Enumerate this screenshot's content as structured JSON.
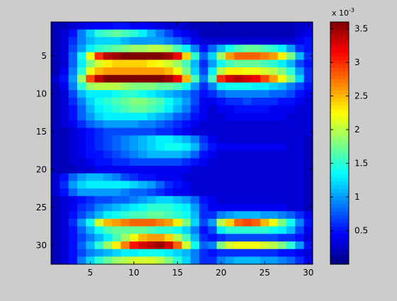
{
  "figure": {
    "background": "#cccccc"
  },
  "chart_data": {
    "type": "heatmap",
    "title": "",
    "xlabel": "",
    "ylabel": "",
    "x_ticks": [
      5,
      10,
      15,
      20,
      25,
      30
    ],
    "y_ticks": [
      5,
      10,
      15,
      20,
      25,
      30
    ],
    "xlim": [
      0.5,
      30.5
    ],
    "ylim": [
      0.5,
      32.5
    ],
    "y_direction": "reversed",
    "colormap": "jet",
    "clim": [
      0,
      0.0036
    ],
    "colorbar": {
      "exponent_label": "x 10",
      "exponent": "-3",
      "tick_values": [
        0.5,
        1,
        1.5,
        2,
        2.5,
        3,
        3.5
      ],
      "tick_labels": [
        "0.5",
        "1",
        "1.5",
        "2",
        "2.5",
        "3",
        "3.5"
      ]
    },
    "z_unit_scale": 0.001,
    "z_rows": [
      [
        0.2,
        0.2,
        0.3,
        0.35,
        0.4,
        0.45,
        0.45,
        0.5,
        0.5,
        0.45,
        0.45,
        0.4,
        0.35,
        0.3,
        0.3,
        0.25,
        0.2,
        0.2,
        0.2,
        0.2,
        0.2,
        0.2,
        0.2,
        0.2,
        0.2,
        0.2,
        0.2,
        0.2,
        0.25,
        0.3
      ],
      [
        0.2,
        0.3,
        0.5,
        0.9,
        1.2,
        1.5,
        1.6,
        1.7,
        1.6,
        1.5,
        1.3,
        1.1,
        0.9,
        0.7,
        0.5,
        0.4,
        0.3,
        0.2,
        0.2,
        0.2,
        0.2,
        0.2,
        0.2,
        0.2,
        0.2,
        0.2,
        0.2,
        0.2,
        0.3,
        0.4
      ],
      [
        0.2,
        0.3,
        0.6,
        0.9,
        1.1,
        1.2,
        1.2,
        1.2,
        1.1,
        1.0,
        1.0,
        1.0,
        1.0,
        0.9,
        0.8,
        0.6,
        0.4,
        0.3,
        0.3,
        0.3,
        0.3,
        0.3,
        0.3,
        0.3,
        0.3,
        0.3,
        0.3,
        0.3,
        0.4,
        0.5
      ],
      [
        0.2,
        0.3,
        0.7,
        1.0,
        1.3,
        1.5,
        1.6,
        1.7,
        1.8,
        1.9,
        1.9,
        2.0,
        2.0,
        1.9,
        1.6,
        1.3,
        0.9,
        0.5,
        0.8,
        1.1,
        1.4,
        1.6,
        1.7,
        1.7,
        1.6,
        1.5,
        1.3,
        1.0,
        0.6,
        0.5
      ],
      [
        0.2,
        0.3,
        0.8,
        1.4,
        2.2,
        3.0,
        3.4,
        3.5,
        3.6,
        3.6,
        3.6,
        3.6,
        3.6,
        3.5,
        3.2,
        2.4,
        1.5,
        0.8,
        1.2,
        1.9,
        2.6,
        2.8,
        2.8,
        2.8,
        2.7,
        2.6,
        2.3,
        1.8,
        1.1,
        0.6
      ],
      [
        0.2,
        0.3,
        0.8,
        1.3,
        1.8,
        2.1,
        2.3,
        2.4,
        2.4,
        2.4,
        2.4,
        2.3,
        2.2,
        2.1,
        1.9,
        1.6,
        1.1,
        0.6,
        1.0,
        1.4,
        1.6,
        1.7,
        1.7,
        1.7,
        1.6,
        1.5,
        1.3,
        1.1,
        0.7,
        0.5
      ],
      [
        0.2,
        0.4,
        0.9,
        1.5,
        2.2,
        2.5,
        2.6,
        2.6,
        2.6,
        2.6,
        2.6,
        2.6,
        2.6,
        2.5,
        2.2,
        1.8,
        1.2,
        0.7,
        1.3,
        2.0,
        2.3,
        2.3,
        2.2,
        2.2,
        2.1,
        2.0,
        1.8,
        1.5,
        1.0,
        0.6
      ],
      [
        0.3,
        0.5,
        1.0,
        1.9,
        2.9,
        3.4,
        3.6,
        3.6,
        3.6,
        3.6,
        3.6,
        3.6,
        3.6,
        3.5,
        3.2,
        2.5,
        1.6,
        0.9,
        1.6,
        3.0,
        3.3,
        3.4,
        3.3,
        3.2,
        2.9,
        2.6,
        2.2,
        1.8,
        1.2,
        0.6
      ],
      [
        0.2,
        0.4,
        0.9,
        1.5,
        1.9,
        2.0,
        2.0,
        2.0,
        1.9,
        1.8,
        1.8,
        1.8,
        1.7,
        1.7,
        1.6,
        1.4,
        1.0,
        0.6,
        0.9,
        1.3,
        1.4,
        1.4,
        1.4,
        1.3,
        1.3,
        1.2,
        1.1,
        0.9,
        0.7,
        0.5
      ],
      [
        0.2,
        0.3,
        0.7,
        1.1,
        1.3,
        1.3,
        1.3,
        1.4,
        1.5,
        1.5,
        1.4,
        1.3,
        1.2,
        1.1,
        1.0,
        0.9,
        0.7,
        0.5,
        0.6,
        0.8,
        0.9,
        0.9,
        0.9,
        0.9,
        0.9,
        0.8,
        0.8,
        0.7,
        0.5,
        0.4
      ],
      [
        0.2,
        0.3,
        0.6,
        0.9,
        1.2,
        1.4,
        1.5,
        1.6,
        1.7,
        1.8,
        1.8,
        1.7,
        1.6,
        1.4,
        1.2,
        1.0,
        0.7,
        0.4,
        0.4,
        0.5,
        0.6,
        0.6,
        0.7,
        0.6,
        0.6,
        0.6,
        0.5,
        0.5,
        0.4,
        0.3
      ],
      [
        0.2,
        0.3,
        0.5,
        0.8,
        1.1,
        1.3,
        1.4,
        1.5,
        1.6,
        1.7,
        1.7,
        1.6,
        1.5,
        1.3,
        1.1,
        0.9,
        0.6,
        0.4,
        0.3,
        0.4,
        0.4,
        0.5,
        0.5,
        0.5,
        0.5,
        0.4,
        0.4,
        0.4,
        0.3,
        0.3
      ],
      [
        0.2,
        0.3,
        0.5,
        0.8,
        1.0,
        1.2,
        1.3,
        1.3,
        1.3,
        1.3,
        1.3,
        1.2,
        1.1,
        1.0,
        0.8,
        0.7,
        0.5,
        0.4,
        0.3,
        0.3,
        0.4,
        0.4,
        0.4,
        0.4,
        0.4,
        0.4,
        0.4,
        0.3,
        0.3,
        0.3
      ],
      [
        0.2,
        0.3,
        0.4,
        0.6,
        0.8,
        0.9,
        1.0,
        1.0,
        1.0,
        1.0,
        0.9,
        0.9,
        0.8,
        0.7,
        0.6,
        0.5,
        0.4,
        0.3,
        0.3,
        0.3,
        0.3,
        0.3,
        0.3,
        0.3,
        0.3,
        0.3,
        0.3,
        0.3,
        0.3,
        0.3
      ],
      [
        0.2,
        0.2,
        0.3,
        0.4,
        0.5,
        0.6,
        0.7,
        0.7,
        0.7,
        0.7,
        0.7,
        0.7,
        0.6,
        0.6,
        0.5,
        0.4,
        0.3,
        0.3,
        0.3,
        0.3,
        0.3,
        0.3,
        0.3,
        0.3,
        0.3,
        0.3,
        0.3,
        0.3,
        0.3,
        0.3
      ],
      [
        0.2,
        0.2,
        0.3,
        0.4,
        0.5,
        0.6,
        0.7,
        0.8,
        0.9,
        1.0,
        1.1,
        1.2,
        1.3,
        1.3,
        1.2,
        1.1,
        0.9,
        0.6,
        0.4,
        0.3,
        0.3,
        0.3,
        0.3,
        0.3,
        0.3,
        0.3,
        0.3,
        0.3,
        0.3,
        0.2
      ],
      [
        0.2,
        0.2,
        0.3,
        0.4,
        0.5,
        0.6,
        0.7,
        0.8,
        0.9,
        1.0,
        1.1,
        1.2,
        1.3,
        1.4,
        1.4,
        1.3,
        1.1,
        0.7,
        0.5,
        0.4,
        0.4,
        0.4,
        0.4,
        0.4,
        0.4,
        0.4,
        0.4,
        0.3,
        0.3,
        0.2
      ],
      [
        0.2,
        0.2,
        0.3,
        0.4,
        0.5,
        0.5,
        0.6,
        0.7,
        0.8,
        0.9,
        1.0,
        1.1,
        1.1,
        1.1,
        1.1,
        1.0,
        0.8,
        0.5,
        0.4,
        0.3,
        0.3,
        0.3,
        0.3,
        0.3,
        0.3,
        0.3,
        0.3,
        0.3,
        0.3,
        0.2
      ],
      [
        0.2,
        0.2,
        0.3,
        0.3,
        0.4,
        0.5,
        0.5,
        0.6,
        0.6,
        0.7,
        0.7,
        0.7,
        0.7,
        0.7,
        0.7,
        0.6,
        0.5,
        0.4,
        0.3,
        0.3,
        0.3,
        0.3,
        0.3,
        0.3,
        0.3,
        0.3,
        0.3,
        0.3,
        0.3,
        0.2
      ],
      [
        0.2,
        0.2,
        0.2,
        0.3,
        0.3,
        0.4,
        0.4,
        0.4,
        0.4,
        0.4,
        0.4,
        0.4,
        0.4,
        0.4,
        0.4,
        0.4,
        0.3,
        0.3,
        0.3,
        0.3,
        0.3,
        0.3,
        0.3,
        0.3,
        0.3,
        0.3,
        0.3,
        0.3,
        0.3,
        0.2
      ],
      [
        0.3,
        0.5,
        0.8,
        1.0,
        1.1,
        1.1,
        1.0,
        0.9,
        0.7,
        0.6,
        0.5,
        0.5,
        0.4,
        0.4,
        0.4,
        0.3,
        0.3,
        0.3,
        0.3,
        0.3,
        0.3,
        0.3,
        0.3,
        0.3,
        0.3,
        0.3,
        0.3,
        0.3,
        0.3,
        0.2
      ],
      [
        0.3,
        0.6,
        1.0,
        1.2,
        1.3,
        1.3,
        1.3,
        1.3,
        1.3,
        1.2,
        1.1,
        1.0,
        0.8,
        0.6,
        0.5,
        0.4,
        0.3,
        0.3,
        0.3,
        0.3,
        0.3,
        0.3,
        0.3,
        0.3,
        0.3,
        0.3,
        0.3,
        0.3,
        0.3,
        0.2
      ],
      [
        0.3,
        0.5,
        0.8,
        1.0,
        1.0,
        1.0,
        1.0,
        1.0,
        0.9,
        0.8,
        0.8,
        0.7,
        0.6,
        0.5,
        0.4,
        0.4,
        0.3,
        0.3,
        0.3,
        0.3,
        0.3,
        0.3,
        0.3,
        0.3,
        0.3,
        0.3,
        0.3,
        0.3,
        0.3,
        0.2
      ],
      [
        0.2,
        0.3,
        0.4,
        0.5,
        0.6,
        0.7,
        0.7,
        0.8,
        0.8,
        0.9,
        1.0,
        1.1,
        1.2,
        1.2,
        1.1,
        1.0,
        0.8,
        0.5,
        0.4,
        0.3,
        0.3,
        0.3,
        0.3,
        0.3,
        0.3,
        0.3,
        0.3,
        0.3,
        0.3,
        0.2
      ],
      [
        0.2,
        0.3,
        0.4,
        0.6,
        0.7,
        0.9,
        1.0,
        1.1,
        1.2,
        1.3,
        1.4,
        1.5,
        1.5,
        1.5,
        1.4,
        1.3,
        1.0,
        0.6,
        0.4,
        0.4,
        0.4,
        0.4,
        0.4,
        0.4,
        0.4,
        0.4,
        0.4,
        0.3,
        0.3,
        0.2
      ],
      [
        0.2,
        0.3,
        0.5,
        0.7,
        0.9,
        1.1,
        1.3,
        1.4,
        1.5,
        1.6,
        1.6,
        1.7,
        1.7,
        1.6,
        1.5,
        1.4,
        1.1,
        0.6,
        0.6,
        0.9,
        1.0,
        1.1,
        1.1,
        1.1,
        1.0,
        1.0,
        0.9,
        0.8,
        0.6,
        0.4
      ],
      [
        0.2,
        0.3,
        0.6,
        1.0,
        1.4,
        2.1,
        2.5,
        2.6,
        2.7,
        2.8,
        2.8,
        2.8,
        2.7,
        2.6,
        2.3,
        1.8,
        1.2,
        0.7,
        1.0,
        2.0,
        2.4,
        2.8,
        2.9,
        2.8,
        2.5,
        2.2,
        1.8,
        1.4,
        0.9,
        0.5
      ],
      [
        0.2,
        0.3,
        0.5,
        0.8,
        1.1,
        1.4,
        1.6,
        1.7,
        1.7,
        1.7,
        1.7,
        1.6,
        1.5,
        1.5,
        1.4,
        1.2,
        0.9,
        0.5,
        0.7,
        1.3,
        1.5,
        1.5,
        1.5,
        1.5,
        1.5,
        1.4,
        1.3,
        1.1,
        0.7,
        0.4
      ],
      [
        0.2,
        0.3,
        0.5,
        0.7,
        0.9,
        1.1,
        1.3,
        1.6,
        1.9,
        2.2,
        2.5,
        2.6,
        2.6,
        2.4,
        2.0,
        1.6,
        1.1,
        0.6,
        0.5,
        0.6,
        0.7,
        0.7,
        0.7,
        0.7,
        0.7,
        0.7,
        0.6,
        0.6,
        0.5,
        0.3
      ],
      [
        0.2,
        0.3,
        0.5,
        0.8,
        1.1,
        1.5,
        1.9,
        2.3,
        2.7,
        3.1,
        3.3,
        3.4,
        3.5,
        3.3,
        2.8,
        2.1,
        1.4,
        0.8,
        0.9,
        1.8,
        2.1,
        2.2,
        2.2,
        2.2,
        2.1,
        2.0,
        1.8,
        1.5,
        1.0,
        0.5
      ],
      [
        0.2,
        0.3,
        0.5,
        0.7,
        0.9,
        1.0,
        1.1,
        1.2,
        1.3,
        1.3,
        1.4,
        1.4,
        1.4,
        1.3,
        1.2,
        1.1,
        0.9,
        0.6,
        0.5,
        0.6,
        0.6,
        0.6,
        0.6,
        0.6,
        0.6,
        0.6,
        0.5,
        0.5,
        0.4,
        0.3
      ],
      [
        0.2,
        0.3,
        0.5,
        0.9,
        1.2,
        1.5,
        1.7,
        1.9,
        2.0,
        2.1,
        2.1,
        2.1,
        2.0,
        1.8,
        1.5,
        1.2,
        0.9,
        0.6,
        0.6,
        0.9,
        1.0,
        1.1,
        1.1,
        1.1,
        1.0,
        1.0,
        0.9,
        0.8,
        0.6,
        0.4
      ]
    ]
  }
}
